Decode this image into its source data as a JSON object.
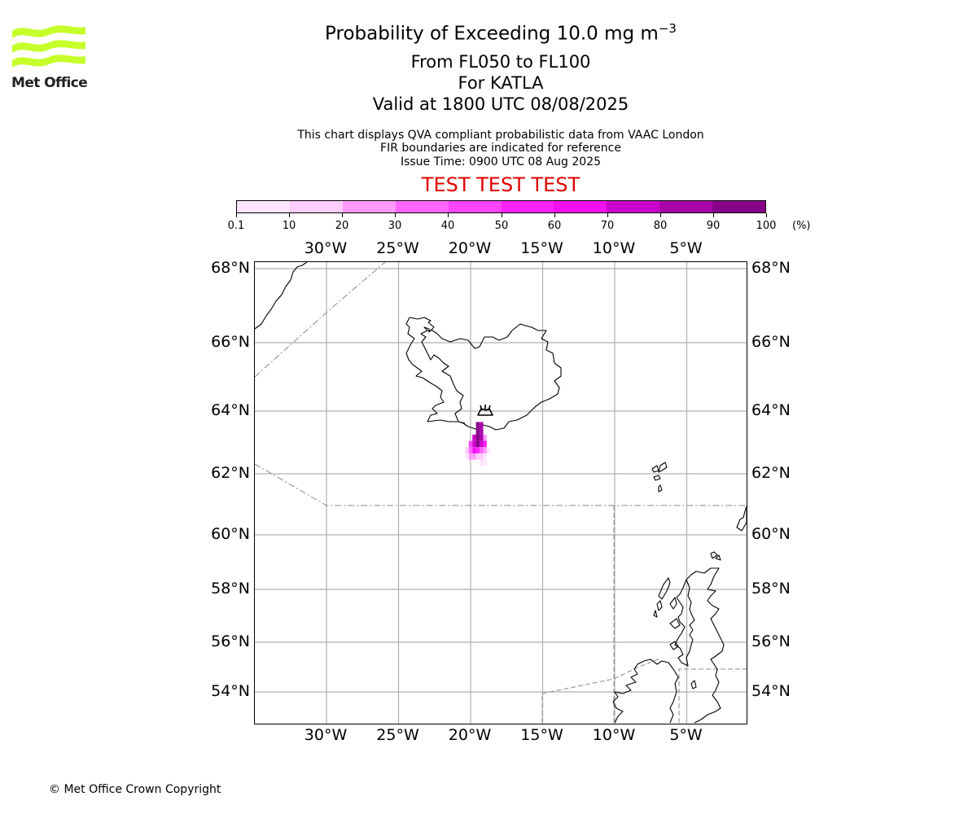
{
  "branding": {
    "logo_text": "Met Office"
  },
  "title": {
    "main_prefix": "Probability of Exceeding 10.0 mg m",
    "main_superscript": "−3",
    "level": "From FL050 to FL100",
    "volcano": "For KATLA",
    "valid": "Valid at 1800 UTC 08/08/2025"
  },
  "subtitle": {
    "line1": "This chart displays QVA compliant probabilistic data from VAAC London",
    "line2": "FIR boundaries are indicated for reference",
    "line3": "Issue Time: 0900 UTC 08 Aug 2025"
  },
  "test_banner": "TEST TEST TEST",
  "colorbar": {
    "ticks": [
      "0.1",
      "10",
      "20",
      "30",
      "40",
      "50",
      "60",
      "70",
      "80",
      "90",
      "100"
    ],
    "unit": "(%)",
    "colors": [
      "#ffe6ff",
      "#ffccff",
      "#ff99ff",
      "#ff66ff",
      "#ff44ff",
      "#ff22ff",
      "#f010f0",
      "#cc00cc",
      "#aa00aa",
      "#880088",
      "#660066"
    ]
  },
  "axes": {
    "lon_labels": [
      "30°W",
      "25°W",
      "20°W",
      "15°W",
      "10°W",
      "5°W"
    ],
    "lat_labels": [
      "68°N",
      "66°N",
      "64°N",
      "62°N",
      "60°N",
      "58°N",
      "56°N",
      "54°N"
    ]
  },
  "plume": {
    "cells": [
      {
        "lon": -19.5,
        "lat": 63.55,
        "pct": 92
      },
      {
        "lon": -19.25,
        "lat": 63.55,
        "pct": 88
      },
      {
        "lon": -19.5,
        "lat": 63.35,
        "pct": 95
      },
      {
        "lon": -19.25,
        "lat": 63.35,
        "pct": 85
      },
      {
        "lon": -19.75,
        "lat": 63.15,
        "pct": 75
      },
      {
        "lon": -19.5,
        "lat": 63.15,
        "pct": 96
      },
      {
        "lon": -19.25,
        "lat": 63.15,
        "pct": 82
      },
      {
        "lon": -19.0,
        "lat": 63.15,
        "pct": 25
      },
      {
        "lon": -20.0,
        "lat": 62.95,
        "pct": 45
      },
      {
        "lon": -19.75,
        "lat": 62.95,
        "pct": 70
      },
      {
        "lon": -19.5,
        "lat": 62.95,
        "pct": 90
      },
      {
        "lon": -19.25,
        "lat": 62.95,
        "pct": 75
      },
      {
        "lon": -19.0,
        "lat": 62.95,
        "pct": 55
      },
      {
        "lon": -20.25,
        "lat": 62.75,
        "pct": 12
      },
      {
        "lon": -20.0,
        "lat": 62.75,
        "pct": 35
      },
      {
        "lon": -19.75,
        "lat": 62.75,
        "pct": 65
      },
      {
        "lon": -19.5,
        "lat": 62.75,
        "pct": 55
      },
      {
        "lon": -19.25,
        "lat": 62.75,
        "pct": 30
      },
      {
        "lon": -19.0,
        "lat": 62.75,
        "pct": 20
      },
      {
        "lon": -18.75,
        "lat": 62.75,
        "pct": 8
      },
      {
        "lon": -20.25,
        "lat": 62.55,
        "pct": 8
      },
      {
        "lon": -20.0,
        "lat": 62.55,
        "pct": 22
      },
      {
        "lon": -19.75,
        "lat": 62.55,
        "pct": 28
      },
      {
        "lon": -19.5,
        "lat": 62.55,
        "pct": 18
      },
      {
        "lon": -19.25,
        "lat": 62.55,
        "pct": 12
      },
      {
        "lon": -19.0,
        "lat": 62.55,
        "pct": 6
      },
      {
        "lon": -19.25,
        "lat": 62.35,
        "pct": 6
      },
      {
        "lon": -19.0,
        "lat": 62.35,
        "pct": 4
      }
    ]
  },
  "volcano_marker": {
    "lon": -19.05,
    "lat": 63.63,
    "name": "KATLA"
  },
  "copyright": "© Met Office Crown Copyright"
}
